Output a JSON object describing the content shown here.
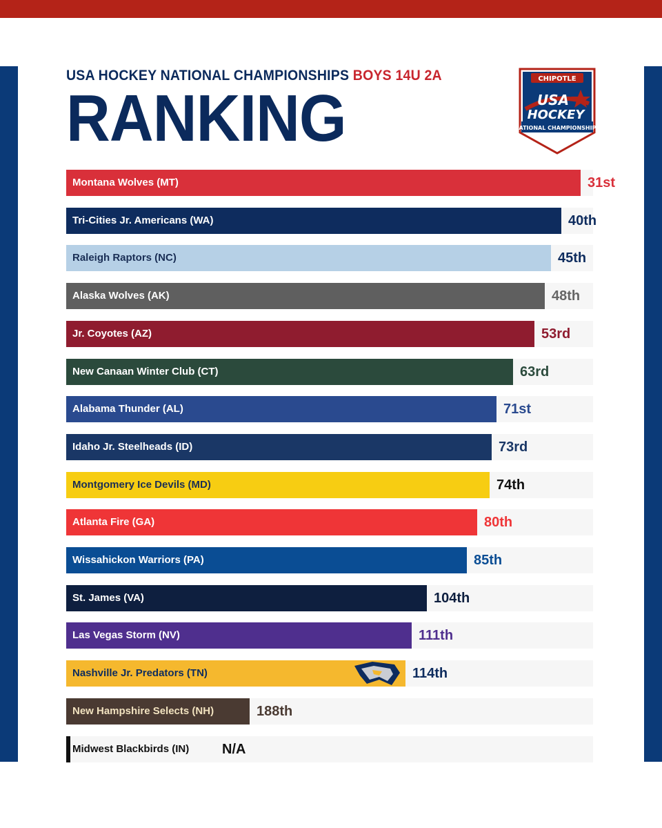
{
  "header": {
    "title_main": "USA HOCKEY NATIONAL CHAMPIONSHIPS",
    "title_accent": "BOYS 14U 2A",
    "heading": "RANKING",
    "logo": {
      "sponsor": "CHIPOTLE",
      "line1": "USA",
      "line2": "HOCKEY",
      "line3": "NATIONAL CHAMPIONSHIPS"
    }
  },
  "chart_data": {
    "type": "bar",
    "orientation": "horizontal",
    "title": "RANKING",
    "subtitle": "USA HOCKEY NATIONAL CHAMPIONSHIPS BOYS 14U 2A",
    "categories": [
      "Montana Wolves (MT)",
      "Tri-Cities Jr. Americans (WA)",
      "Raleigh Raptors (NC)",
      "Alaska Wolves (AK)",
      "Jr. Coyotes (AZ)",
      "New Canaan Winter Club (CT)",
      "Alabama Thunder (AL)",
      "Idaho Jr. Steelheads (ID)",
      "Montgomery Ice Devils (MD)",
      "Atlanta Fire (GA)",
      "Wissahickon Warriors (PA)",
      "St. James (VA)",
      "Las Vegas Storm (NV)",
      "Nashville Jr. Predators (TN)",
      "New Hampshire Selects (NH)",
      "Midwest Blackbirds (IN)"
    ],
    "values": [
      31,
      40,
      45,
      48,
      53,
      63,
      71,
      73,
      74,
      80,
      85,
      104,
      111,
      114,
      188,
      null
    ],
    "labels": [
      "31st",
      "40th",
      "45th",
      "48th",
      "53rd",
      "63rd",
      "71st",
      "73rd",
      "74th",
      "80th",
      "85th",
      "104th",
      "111th",
      "114th",
      "188th",
      "N/A"
    ],
    "bar_colors": [
      "#d9303a",
      "#0e2c5e",
      "#b6d0e6",
      "#5f5f5f",
      "#8f1c2f",
      "#2b4a3c",
      "#2a4a8f",
      "#1a3766",
      "#f7cd12",
      "#ef3537",
      "#0a4d94",
      "#0e1f3f",
      "#4f2f8e",
      "#f5b82e",
      "#4a3a32",
      "#111111"
    ],
    "label_colors": [
      "#ffffff",
      "#ffffff",
      "#1a2e55",
      "#ffffff",
      "#ffffff",
      "#ffffff",
      "#ffffff",
      "#ffffff",
      "#1a2e55",
      "#ffffff",
      "#ffffff",
      "#ffffff",
      "#ffffff",
      "#0e2c5e",
      "#f1e2bf",
      "#111111"
    ],
    "rank_colors": [
      "#d9303a",
      "#0e2c5e",
      "#0e2c5e",
      "#666666",
      "#8f1c2f",
      "#2b4a3c",
      "#2a4a8f",
      "#1a3766",
      "#111111",
      "#ef3537",
      "#0a4d94",
      "#0e1f3f",
      "#4f2f8e",
      "#0e2c5e",
      "#4a3a32",
      "#111111"
    ],
    "xlabel": "",
    "ylabel": "",
    "grid": false
  }
}
